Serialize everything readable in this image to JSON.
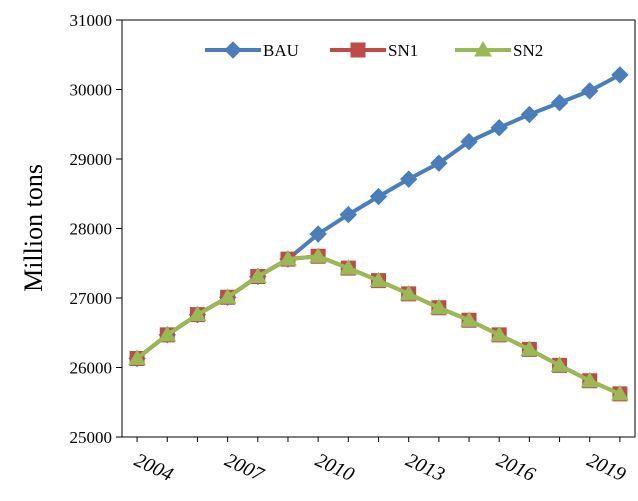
{
  "chart_data": {
    "type": "line",
    "y_label": "Million  tons",
    "x": [
      2004,
      2005,
      2006,
      2007,
      2008,
      2009,
      2010,
      2011,
      2012,
      2013,
      2014,
      2015,
      2016,
      2017,
      2018,
      2019,
      2020
    ],
    "xlim": [
      2003.5,
      2020.5
    ],
    "xticks": [
      2004,
      2007,
      2010,
      2013,
      2016,
      2019
    ],
    "ylim": [
      25000,
      31000
    ],
    "yticks": [
      25000,
      26000,
      27000,
      28000,
      29000,
      30000,
      31000
    ],
    "legend": "top",
    "series": [
      {
        "name": "BAU",
        "color": "#4a7ebb",
        "marker": "diamond",
        "values": [
          26130,
          26470,
          26760,
          27010,
          27310,
          27560,
          27920,
          28200,
          28460,
          28710,
          28940,
          29250,
          29450,
          29640,
          29810,
          29980,
          30210
        ]
      },
      {
        "name": "SN1",
        "color": "#be4b48",
        "marker": "square",
        "values": [
          26130,
          26470,
          26760,
          27010,
          27310,
          27560,
          27600,
          27430,
          27250,
          27060,
          26860,
          26680,
          26470,
          26260,
          26030,
          25810,
          25620
        ]
      },
      {
        "name": "SN2",
        "color": "#98b954",
        "marker": "triangle",
        "values": [
          26130,
          26470,
          26760,
          27010,
          27310,
          27560,
          27600,
          27430,
          27250,
          27060,
          26860,
          26680,
          26470,
          26260,
          26030,
          25810,
          25620
        ]
      }
    ]
  }
}
